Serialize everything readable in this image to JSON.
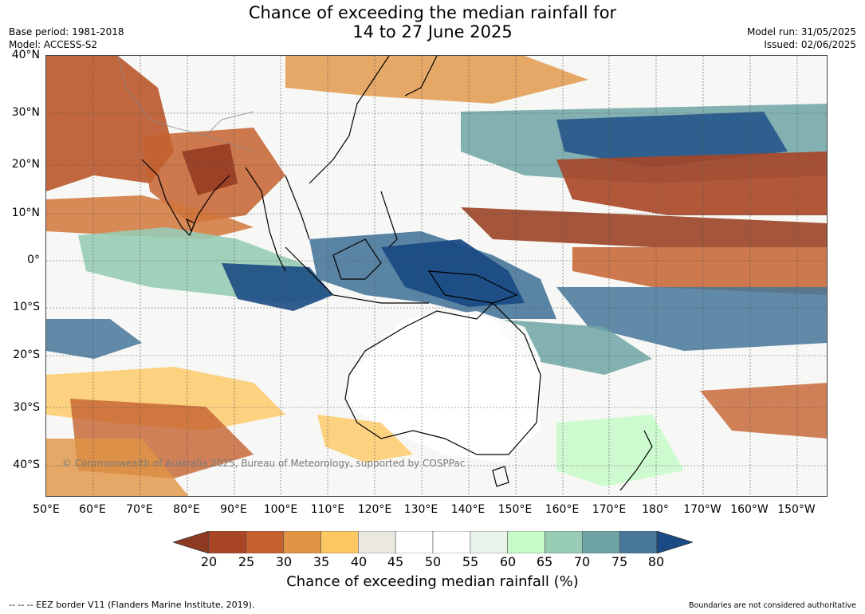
{
  "title_line1": "Chance of exceeding the median rainfall for",
  "title_line2": "14 to 27 June 2025",
  "base_period": "Base period: 1981-2018",
  "model": "Model: ACCESS-S2",
  "model_run": "Model run: 31/05/2025",
  "issued": "Issued: 02/06/2025",
  "copyright": "© Commonwealth of Australia 2025, Bureau of Meteorology, supported by COSPPac",
  "lat_labels": [
    "40°N",
    "30°N",
    "20°N",
    "10°N",
    "0°",
    "10°S",
    "20°S",
    "30°S",
    "40°S"
  ],
  "lon_labels": [
    "50°E",
    "60°E",
    "70°E",
    "80°E",
    "90°E",
    "100°E",
    "110°E",
    "120°E",
    "130°E",
    "140°E",
    "150°E",
    "160°E",
    "170°E",
    "180°",
    "170°W",
    "160°W",
    "150°W"
  ],
  "colorbar": {
    "ticks": [
      "20",
      "25",
      "30",
      "35",
      "40",
      "45",
      "50",
      "55",
      "60",
      "65",
      "70",
      "75",
      "80"
    ],
    "colors": [
      "#8e3a22",
      "#a84627",
      "#c5612f",
      "#e09444",
      "#fdc763",
      "#ebe8e2",
      "#ffffff",
      "#ffffff",
      "#e9f5ea",
      "#c6fbc8",
      "#98ccb5",
      "#6ea4a6",
      "#47779a",
      "#1a4b84"
    ],
    "label": "Chance of exceeding median rainfall (%)"
  },
  "eez_note": "-- -- -- EEZ border V11 (Flanders Marine Institute, 2019).",
  "boundaries_note": "Boundaries are not considered authoritative"
}
